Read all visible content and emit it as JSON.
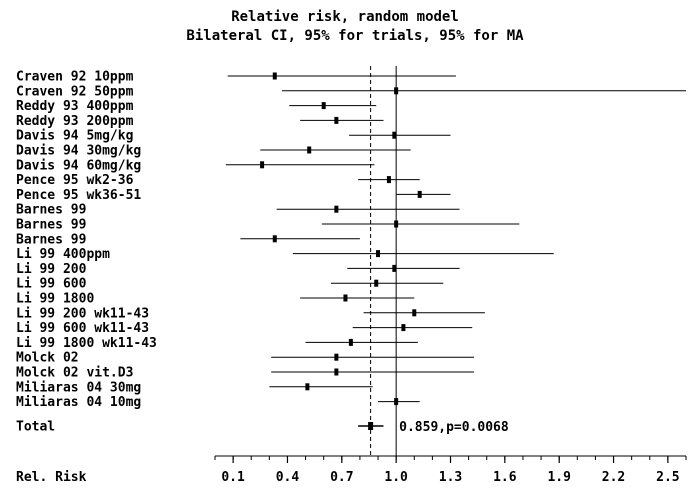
{
  "chart_data": {
    "type": "forest",
    "title": "Relative risk, random model",
    "subtitle": "Bilateral CI, 95% for trials, 95% for MA",
    "xlabel": "Rel. Risk",
    "xlim": [
      0,
      2.6
    ],
    "xticks": [
      0.1,
      0.4,
      0.7,
      1.0,
      1.3,
      1.6,
      1.9,
      2.2,
      2.5
    ],
    "xtick_labels": [
      "0.1",
      "0.4",
      "0.7",
      "1.0",
      "1.3",
      "1.6",
      "1.9",
      "2.2",
      "2.5"
    ],
    "reference_line": 1.0,
    "pooled_line": 0.859,
    "studies": [
      {
        "label": "Craven 92 10ppm",
        "rr": 0.33,
        "lo": 0.07,
        "hi": 1.33
      },
      {
        "label": "Craven 92 50ppm",
        "rr": 1.0,
        "lo": 0.37,
        "hi": 2.6
      },
      {
        "label": "Reddy 93 400ppm",
        "rr": 0.6,
        "lo": 0.41,
        "hi": 0.89
      },
      {
        "label": "Reddy 93 200ppm",
        "rr": 0.67,
        "lo": 0.47,
        "hi": 0.93
      },
      {
        "label": "Davis 94 5mg/kg",
        "rr": 0.99,
        "lo": 0.74,
        "hi": 1.3
      },
      {
        "label": "Davis 94 30mg/kg",
        "rr": 0.52,
        "lo": 0.25,
        "hi": 1.08
      },
      {
        "label": "Davis 94 60mg/kg",
        "rr": 0.26,
        "lo": 0.06,
        "hi": 0.88
      },
      {
        "label": "Pence 95 wk2-36",
        "rr": 0.96,
        "lo": 0.79,
        "hi": 1.13
      },
      {
        "label": "Pence 95 wk36-51",
        "rr": 1.13,
        "lo": 1.0,
        "hi": 1.3
      },
      {
        "label": "Barnes 99",
        "rr": 0.67,
        "lo": 0.34,
        "hi": 1.35
      },
      {
        "label": "Barnes 99",
        "rr": 1.0,
        "lo": 0.59,
        "hi": 1.68
      },
      {
        "label": "Barnes 99",
        "rr": 0.33,
        "lo": 0.14,
        "hi": 0.8
      },
      {
        "label": "Li 99 400ppm",
        "rr": 0.9,
        "lo": 0.43,
        "hi": 1.87
      },
      {
        "label": "Li 99 200",
        "rr": 0.99,
        "lo": 0.73,
        "hi": 1.35
      },
      {
        "label": "Li 99 600",
        "rr": 0.89,
        "lo": 0.64,
        "hi": 1.26
      },
      {
        "label": "Li 99 1800",
        "rr": 0.72,
        "lo": 0.47,
        "hi": 1.1
      },
      {
        "label": "Li 99 200 wk11-43",
        "rr": 1.1,
        "lo": 0.82,
        "hi": 1.49
      },
      {
        "label": "Li 99 600 wk11-43",
        "rr": 1.04,
        "lo": 0.76,
        "hi": 1.42
      },
      {
        "label": "Li 99 1800 wk11-43",
        "rr": 0.75,
        "lo": 0.5,
        "hi": 1.12
      },
      {
        "label": "Molck 02",
        "rr": 0.67,
        "lo": 0.31,
        "hi": 1.43
      },
      {
        "label": "Molck 02 vit.D3",
        "rr": 0.67,
        "lo": 0.31,
        "hi": 1.43
      },
      {
        "label": "Miliaras 04 30mg",
        "rr": 0.51,
        "lo": 0.3,
        "hi": 0.87
      },
      {
        "label": "Miliaras 04 10mg",
        "rr": 1.0,
        "lo": 0.9,
        "hi": 1.13
      }
    ],
    "total": {
      "label": "Total",
      "rr": 0.859,
      "lo": 0.79,
      "hi": 0.93,
      "text": "0.859,p=0.0068"
    }
  }
}
